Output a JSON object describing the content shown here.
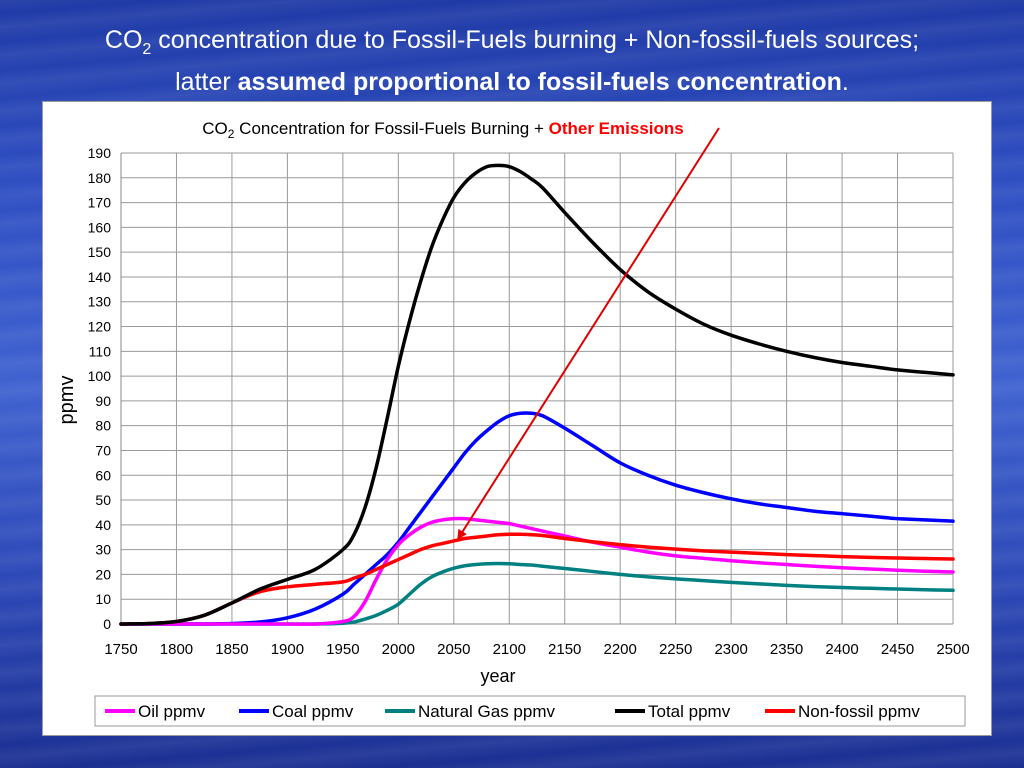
{
  "slide": {
    "title_line1_pre": "CO",
    "title_line1_sub": "2",
    "title_line1_post": " concentration due to Fossil-Fuels burning + Non-fossil-fuels sources;",
    "title_line2_pre": "latter ",
    "title_line2_bold": "assumed proportional to fossil-fuels concentration",
    "title_line2_post": "."
  },
  "colors": {
    "oil": "#ff00ff",
    "coal": "#0000ff",
    "gas": "#008080",
    "total": "#000000",
    "nonfossil": "#ff0000",
    "arrow": "#e00000",
    "highlight": "#ff0000"
  },
  "chart_data": {
    "type": "line",
    "title_pre": "CO",
    "title_sub": "2",
    "title_mid": " Concentration for Fossil-Fuels Burning + ",
    "title_highlight": "Other Emissions",
    "xlabel": "year",
    "ylabel": "ppmv",
    "xlim": [
      1750,
      2500
    ],
    "ylim": [
      0,
      190
    ],
    "xticks": [
      "1750",
      "1800",
      "1850",
      "1900",
      "1950",
      "2000",
      "2050",
      "2100",
      "2150",
      "2200",
      "2250",
      "2300",
      "2350",
      "2400",
      "2450",
      "2500"
    ],
    "yticks": [
      "0",
      "10",
      "20",
      "30",
      "40",
      "50",
      "60",
      "70",
      "80",
      "90",
      "100",
      "110",
      "120",
      "130",
      "140",
      "150",
      "160",
      "170",
      "180",
      "190"
    ],
    "grid": true,
    "legend_position": "bottom",
    "annotation": {
      "type": "arrow",
      "from_label": "Other Emissions",
      "to_series": "Non-fossil ppmv",
      "to_x": 2055,
      "to_y": 35
    },
    "x": [
      1750,
      1775,
      1800,
      1825,
      1850,
      1875,
      1900,
      1925,
      1950,
      1960,
      1970,
      1980,
      1990,
      2000,
      2010,
      2020,
      2030,
      2040,
      2050,
      2060,
      2070,
      2080,
      2090,
      2100,
      2110,
      2120,
      2130,
      2150,
      2175,
      2200,
      2225,
      2250,
      2275,
      2300,
      2325,
      2350,
      2375,
      2400,
      2425,
      2450,
      2475,
      2500
    ],
    "series": [
      {
        "name": "Oil ppmv",
        "key": "oil",
        "values": [
          0,
          0,
          0,
          0,
          0,
          0,
          0,
          0,
          1,
          3,
          9,
          18,
          26,
          32,
          36,
          39,
          41,
          42,
          42.5,
          42.5,
          42,
          41.5,
          41,
          40.5,
          39.5,
          38.5,
          37.5,
          35.5,
          33,
          31,
          29,
          27.5,
          26.5,
          25.5,
          24.7,
          24,
          23.3,
          22.7,
          22.2,
          21.7,
          21.3,
          21
        ]
      },
      {
        "name": "Coal ppmv",
        "key": "coal",
        "values": [
          0,
          0,
          0,
          0,
          0.2,
          0.8,
          2.5,
          6,
          12,
          16,
          20,
          24,
          28,
          33,
          39,
          45,
          51,
          57,
          63,
          69,
          74,
          78,
          81.5,
          84,
          85,
          85,
          84,
          79,
          72,
          65,
          60,
          56,
          53,
          50.5,
          48.5,
          47,
          45.5,
          44.5,
          43.5,
          42.5,
          42,
          41.5
        ]
      },
      {
        "name": "Natural Gas ppmv",
        "key": "gas",
        "values": [
          0,
          0,
          0,
          0,
          0,
          0,
          0,
          0,
          0.3,
          0.8,
          2,
          3.5,
          5.5,
          8,
          12,
          16,
          19,
          21,
          22.5,
          23.5,
          24,
          24.3,
          24.4,
          24.3,
          24,
          23.8,
          23.3,
          22.4,
          21.2,
          20,
          19,
          18.2,
          17.5,
          16.8,
          16.2,
          15.6,
          15.1,
          14.7,
          14.4,
          14.1,
          13.8,
          13.6
        ]
      },
      {
        "name": "Total ppmv",
        "key": "total",
        "values": [
          0,
          0.2,
          1,
          3.5,
          8.5,
          14,
          18,
          22,
          30,
          36,
          47,
          63,
          83,
          104,
          122,
          138,
          152,
          163,
          172,
          178,
          182,
          184.5,
          185,
          184.5,
          182.5,
          179.5,
          176,
          166,
          154,
          143,
          134,
          127,
          121,
          116.5,
          113,
          110,
          107.5,
          105.5,
          104,
          102.5,
          101.5,
          100.5
        ]
      },
      {
        "name": "Non-fossil ppmv",
        "key": "nonfossil",
        "values": [
          0,
          0.2,
          1,
          3.5,
          8.5,
          13,
          15,
          16,
          17,
          18.5,
          20,
          22,
          24,
          26,
          28,
          30,
          31.5,
          32.5,
          33.5,
          34.5,
          35,
          35.5,
          36,
          36.2,
          36.2,
          36,
          35.7,
          34.5,
          33.2,
          32,
          31,
          30.2,
          29.5,
          29,
          28.5,
          28,
          27.6,
          27.2,
          26.9,
          26.6,
          26.4,
          26.2
        ]
      }
    ]
  }
}
